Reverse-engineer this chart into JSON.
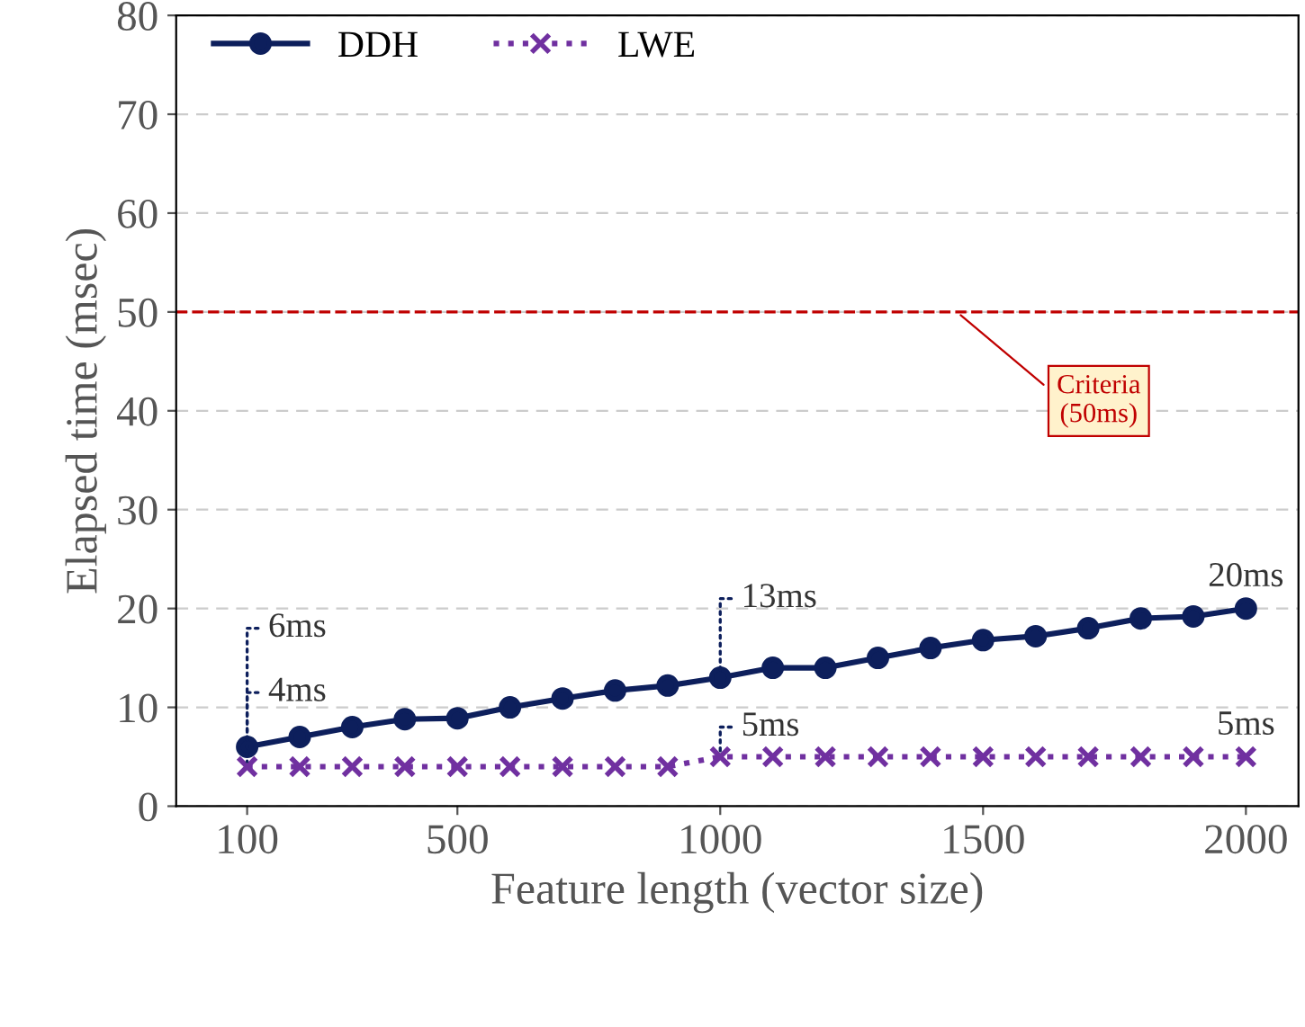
{
  "chart_data": {
    "type": "line",
    "xlabel": "Feature length (vector size)",
    "ylabel": "Elapsed time (msec)",
    "x": [
      100,
      200,
      300,
      400,
      500,
      600,
      700,
      800,
      900,
      1000,
      1100,
      1200,
      1300,
      1400,
      1500,
      1600,
      1700,
      1800,
      1900,
      2000
    ],
    "series": [
      {
        "name": "DDH",
        "color": "#0d1f5c",
        "marker": "circle",
        "line_style": "solid",
        "values": [
          6,
          7,
          8,
          8.8,
          8.9,
          10,
          10.9,
          11.7,
          12.2,
          13,
          14,
          14,
          15,
          16,
          16.8,
          17.2,
          18,
          19,
          19.2,
          20
        ]
      },
      {
        "name": "LWE",
        "color": "#7030a0",
        "marker": "cross",
        "line_style": "dotted",
        "values": [
          4,
          4,
          4,
          4,
          4,
          4,
          4,
          4,
          4,
          5,
          5,
          5,
          5,
          5,
          5,
          5,
          5,
          5,
          5,
          5
        ]
      }
    ],
    "xlim": [
      -35,
      2100
    ],
    "xticks": [
      100,
      500,
      1000,
      1500,
      2000
    ],
    "ylim": [
      0,
      80
    ],
    "yticks": [
      0,
      10,
      20,
      30,
      40,
      50,
      60,
      70,
      80
    ],
    "grid": "y",
    "legend": "top left",
    "ref_lines": [
      {
        "axis": "y",
        "value": 50,
        "label": "Criteria\n(50ms)",
        "color": "#c00000",
        "line_style": "dashed"
      }
    ],
    "annotations": [
      {
        "text": "6ms",
        "x": 100,
        "y": 6
      },
      {
        "text": "4ms",
        "x": 100,
        "y": 4
      },
      {
        "text": "13ms",
        "x": 1000,
        "y": 13
      },
      {
        "text": "5ms",
        "x": 1000,
        "y": 5
      },
      {
        "text": "20ms",
        "x": 2000,
        "y": 20
      },
      {
        "text": "5ms",
        "x": 2000,
        "y": 5
      }
    ]
  }
}
